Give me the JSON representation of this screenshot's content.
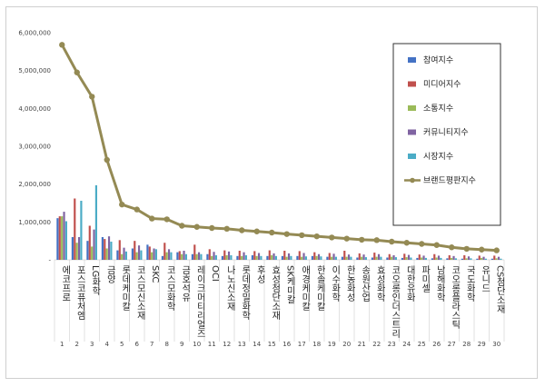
{
  "chart_data": {
    "type": "bar",
    "title": "",
    "xlabel": "",
    "ylabel": "",
    "ylim": [
      0,
      6000000
    ],
    "yticks": [
      0,
      1000000,
      2000000,
      3000000,
      4000000,
      5000000,
      6000000
    ],
    "ytick_labels": [
      "-",
      "1,000,000",
      "2,000,000",
      "3,000,000",
      "4,000,000",
      "5,000,000",
      "6,000,000"
    ],
    "grid": false,
    "legend": "right",
    "index_labels": [
      "1",
      "2",
      "3",
      "4",
      "5",
      "6",
      "7",
      "8",
      "9",
      "10",
      "11",
      "12",
      "13",
      "14",
      "15",
      "16",
      "17",
      "18",
      "19",
      "20",
      "21",
      "22",
      "23",
      "24",
      "25",
      "26",
      "27",
      "28",
      "29",
      "30"
    ],
    "categories": [
      "에코프로",
      "포스코퓨처엠",
      "LG화학",
      "금양",
      "롯데케미칼",
      "코스모신소재",
      "SKC",
      "코스모화학",
      "금호석유",
      "레이크머티리얼즈",
      "OCI",
      "나노신소재",
      "롯데정밀화학",
      "후성",
      "효성첨단소재",
      "SK케미칼",
      "애경케미칼",
      "한솔케미칼",
      "이수화학",
      "한농화성",
      "송원산업",
      "효성화학",
      "코오롱인더스트리",
      "대한유화",
      "파미셀",
      "남해화학",
      "코오롱플라스틱",
      "국도화학",
      "유니드",
      "CS첨단소재"
    ],
    "series": [
      {
        "name": "참여지수",
        "color": "#4472c4",
        "type": "bar",
        "values": [
          1100000,
          600000,
          500000,
          600000,
          250000,
          300000,
          400000,
          100000,
          200000,
          150000,
          150000,
          100000,
          100000,
          120000,
          100000,
          100000,
          100000,
          100000,
          80000,
          80000,
          60000,
          60000,
          60000,
          50000,
          50000,
          40000,
          40000,
          30000,
          30000,
          30000
        ]
      },
      {
        "name": "미디어지수",
        "color": "#c0504d",
        "type": "bar",
        "values": [
          1150000,
          1620000,
          900000,
          550000,
          520000,
          500000,
          350000,
          450000,
          230000,
          400000,
          280000,
          250000,
          240000,
          230000,
          250000,
          240000,
          230000,
          200000,
          180000,
          240000,
          170000,
          190000,
          150000,
          160000,
          140000,
          150000,
          120000,
          120000,
          110000,
          110000
        ]
      },
      {
        "name": "소통지수",
        "color": "#9bbb59",
        "type": "bar",
        "values": [
          1150000,
          450000,
          350000,
          300000,
          150000,
          200000,
          200000,
          200000,
          150000,
          150000,
          100000,
          120000,
          100000,
          100000,
          120000,
          80000,
          80000,
          100000,
          80000,
          80000,
          80000,
          80000,
          80000,
          70000,
          60000,
          60000,
          50000,
          40000,
          50000,
          40000
        ]
      },
      {
        "name": "커뮤니티지수",
        "color": "#8064a2",
        "type": "bar",
        "values": [
          1270000,
          600000,
          800000,
          620000,
          320000,
          380000,
          300000,
          280000,
          240000,
          200000,
          210000,
          220000,
          200000,
          180000,
          170000,
          170000,
          180000,
          150000,
          160000,
          140000,
          140000,
          150000,
          120000,
          130000,
          110000,
          110000,
          100000,
          90000,
          80000,
          80000
        ]
      },
      {
        "name": "시장지수",
        "color": "#4bacc6",
        "type": "bar",
        "values": [
          1020000,
          1560000,
          1970000,
          480000,
          220000,
          250000,
          280000,
          200000,
          150000,
          150000,
          120000,
          120000,
          120000,
          100000,
          100000,
          100000,
          90000,
          90000,
          80000,
          80000,
          70000,
          80000,
          70000,
          60000,
          50000,
          50000,
          40000,
          40000,
          30000,
          30000
        ]
      },
      {
        "name": "브랜드평판지수",
        "color": "#948a54",
        "type": "line",
        "values": [
          5680000,
          4950000,
          4310000,
          2640000,
          1460000,
          1330000,
          1090000,
          1070000,
          900000,
          870000,
          840000,
          820000,
          780000,
          750000,
          720000,
          680000,
          650000,
          620000,
          590000,
          560000,
          530000,
          520000,
          480000,
          450000,
          420000,
          390000,
          330000,
          290000,
          270000,
          250000
        ]
      }
    ]
  }
}
